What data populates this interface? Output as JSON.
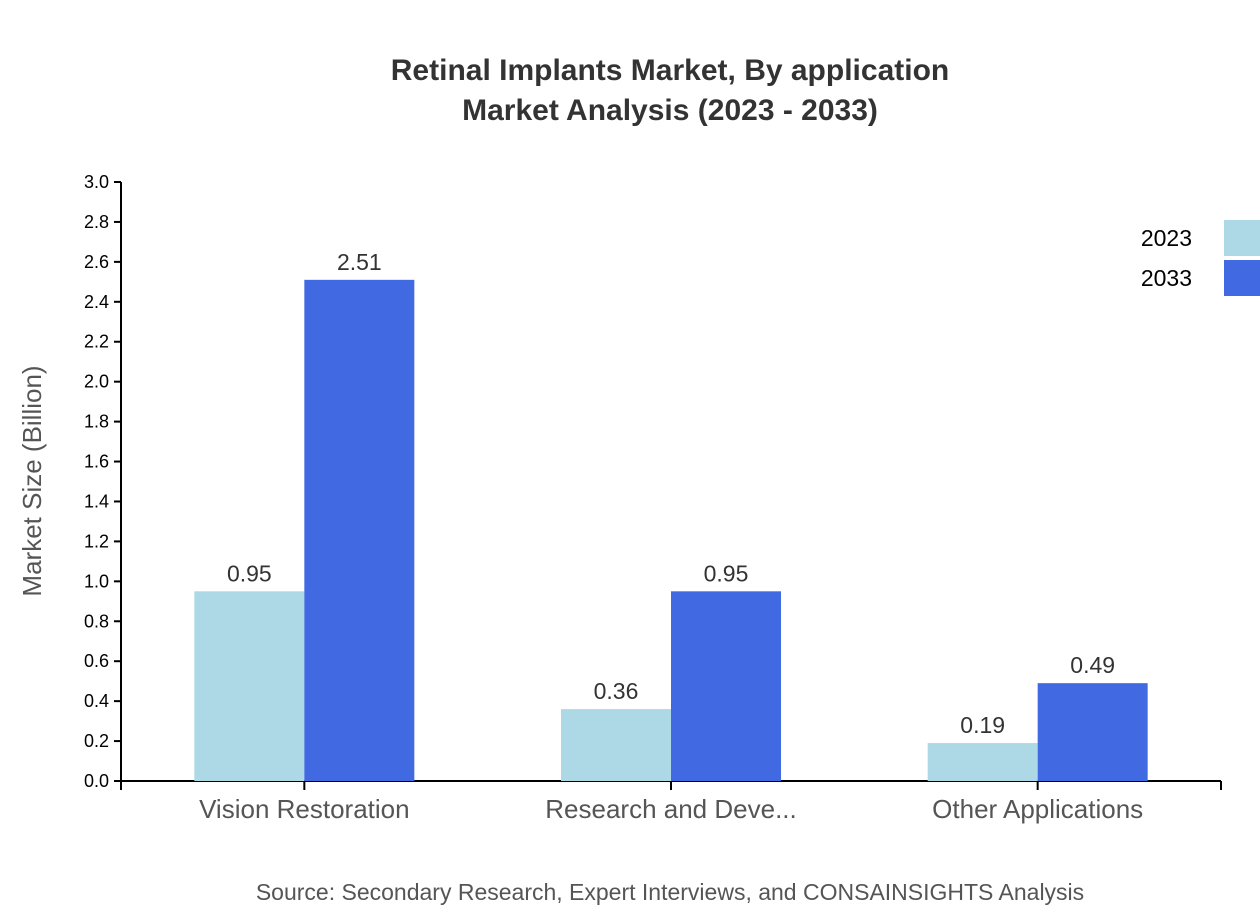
{
  "chart_data": {
    "type": "bar",
    "title": "Retinal Implants Market, By application",
    "subtitle": "Market Analysis (2023 - 2033)",
    "xlabel": "",
    "ylabel": "Market Size (Billion)",
    "ylim": [
      0,
      3.0
    ],
    "yticks": [
      "0.0",
      "0.2",
      "0.4",
      "0.6",
      "0.8",
      "1.0",
      "1.2",
      "1.4",
      "1.6",
      "1.8",
      "2.0",
      "2.2",
      "2.4",
      "2.6",
      "2.8",
      "3.0"
    ],
    "categories": [
      "Vision Restoration",
      "Research and Deve...",
      "Other Applications"
    ],
    "series": [
      {
        "name": "2023",
        "color": "#ADD8E6",
        "values": [
          0.95,
          0.36,
          0.19
        ],
        "labels": [
          "0.95",
          "0.36",
          "0.19"
        ]
      },
      {
        "name": "2033",
        "color": "#4169E1",
        "values": [
          2.51,
          0.95,
          0.49
        ],
        "labels": [
          "2.51",
          "0.95",
          "0.49"
        ]
      }
    ],
    "legend_position": "top-right",
    "grid": false,
    "source": "Source: Secondary Research, Expert Interviews, and CONSAINSIGHTS Analysis"
  }
}
